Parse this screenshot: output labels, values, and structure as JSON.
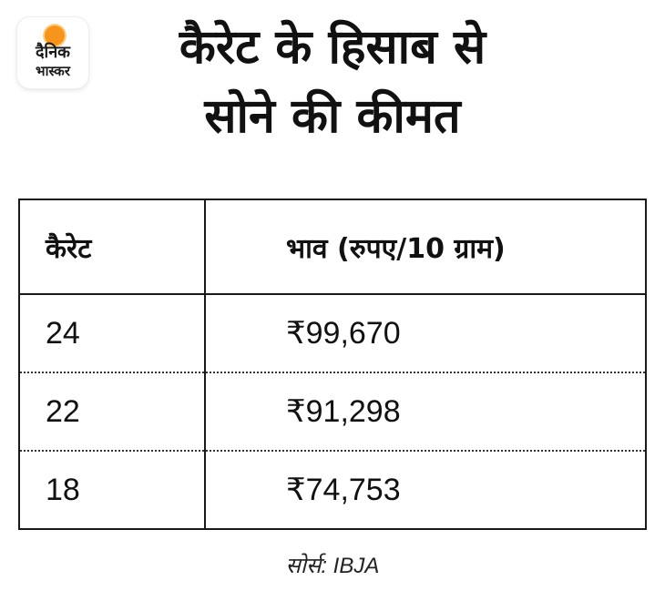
{
  "logo": {
    "line1": "दैनिक",
    "line2": "भास्कर",
    "accent_color": "#f7941d"
  },
  "title": {
    "line1": "कैरेट के हिसाब से",
    "line2": "सोने की कीमत"
  },
  "table": {
    "headers": [
      "कैरेट",
      "भाव (रुपए/10 ग्राम)"
    ],
    "rows": [
      {
        "carat": "24",
        "price": "₹99,670"
      },
      {
        "carat": "22",
        "price": "₹91,298"
      },
      {
        "carat": "18",
        "price": "₹74,753"
      }
    ]
  },
  "source": "सोर्स: IBJA"
}
